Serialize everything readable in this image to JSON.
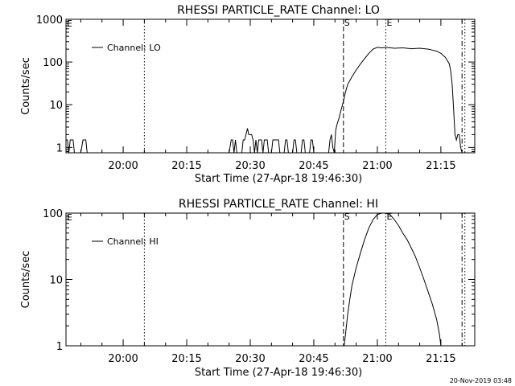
{
  "footer_timestamp": "20-Nov-2019 03:48",
  "chart_data": [
    {
      "type": "line",
      "title": "RHESSI PARTICLE_RATE Channel: LO",
      "xlabel": "Start Time (27-Apr-18 19:46:30)",
      "ylabel": "Counts/sec",
      "yscale": "log",
      "ylim": [
        0.75,
        1000
      ],
      "xlim": [
        "19:46:30",
        "21:23:00"
      ],
      "x_ticks": [
        "20:00",
        "20:15",
        "20:30",
        "20:45",
        "21:00",
        "21:15"
      ],
      "y_ticks": [
        "1",
        "10",
        "100",
        "1000"
      ],
      "legend": "top-left",
      "series": [
        {
          "name": "Channel: LO",
          "x": [
            "19:46:30",
            "19:46:50",
            "19:47:10",
            "19:47:30",
            "19:47:50",
            "19:48:10",
            "19:48:30",
            "19:50:00",
            "19:50:30",
            "19:50:50",
            "19:51:10",
            "19:51:30",
            "19:52:00",
            "20:25:00",
            "20:25:30",
            "20:25:50",
            "20:26:10",
            "20:26:30",
            "20:26:50",
            "20:28:00",
            "20:28:20",
            "20:28:40",
            "20:29:00",
            "20:29:20",
            "20:29:40",
            "20:30:20",
            "20:30:40",
            "20:31:00",
            "20:31:20",
            "20:31:40",
            "20:32:00",
            "20:32:40",
            "20:33:00",
            "20:33:20",
            "20:33:40",
            "20:34:00",
            "20:34:20",
            "20:35:00",
            "20:35:20",
            "20:36:00",
            "20:36:20",
            "20:36:40",
            "20:37:00",
            "20:38:00",
            "20:38:20",
            "20:38:40",
            "20:39:00",
            "20:40:00",
            "20:40:20",
            "20:40:40",
            "20:41:00",
            "20:42:00",
            "20:42:20",
            "20:42:40",
            "20:43:00",
            "20:44:00",
            "20:44:20",
            "20:44:40",
            "20:45:00",
            "20:48:30",
            "20:48:50",
            "20:49:10",
            "20:49:30",
            "20:49:50",
            "20:50:10",
            "20:50:30",
            "20:51:00",
            "20:51:30",
            "20:52:00",
            "20:52:30",
            "20:53:00",
            "20:54:00",
            "20:55:00",
            "20:56:00",
            "20:57:00",
            "20:58:00",
            "20:59:00",
            "21:00:00",
            "21:01:00",
            "21:02:00",
            "21:04:00",
            "21:06:00",
            "21:08:00",
            "21:10:00",
            "21:12:00",
            "21:13:00",
            "21:14:00",
            "21:15:00",
            "21:16:00",
            "21:16:30",
            "21:17:00",
            "21:17:20",
            "21:17:40",
            "21:18:00",
            "21:18:20",
            "21:18:40",
            "21:19:00",
            "21:19:20",
            "21:19:40",
            "21:20:00"
          ],
          "y": [
            1.5,
            1.5,
            0.75,
            1.5,
            1.5,
            1.5,
            0.75,
            0.75,
            1.5,
            1.5,
            1.5,
            0.75,
            0.75,
            0.75,
            1.5,
            1.5,
            0.75,
            1.5,
            0.75,
            0.75,
            1.5,
            1.5,
            2,
            2.8,
            2,
            2,
            1.5,
            0.75,
            1.5,
            0.75,
            1.5,
            1.5,
            0.75,
            1.5,
            1.5,
            1.5,
            0.75,
            0.75,
            1.5,
            1.5,
            1.5,
            1.5,
            0.75,
            0.75,
            1.5,
            1.5,
            0.75,
            0.75,
            1.5,
            1.5,
            0.75,
            0.75,
            1.5,
            1.5,
            0.75,
            0.75,
            1.5,
            1.5,
            0.75,
            0.75,
            1.5,
            2,
            1,
            0.75,
            2.5,
            3.5,
            5,
            8,
            12,
            20,
            30,
            45,
            65,
            90,
            120,
            160,
            200,
            220,
            215,
            220,
            210,
            215,
            205,
            210,
            200,
            190,
            180,
            160,
            130,
            110,
            90,
            60,
            30,
            8,
            2,
            1.5,
            2,
            2,
            1,
            0.75
          ]
        }
      ],
      "reference_lines": [
        {
          "time": "20:05:00",
          "style": "dotted",
          "label": ""
        },
        {
          "time": "20:52:00",
          "style": "dashed",
          "label": "S"
        },
        {
          "time": "21:02:00",
          "style": "dotted",
          "label": "E"
        },
        {
          "time": "21:20:00",
          "style": "dashdot",
          "label": ""
        },
        {
          "time": "21:20:40",
          "style": "dotted",
          "label": ""
        }
      ],
      "corner_marker": "E"
    },
    {
      "type": "line",
      "title": "RHESSI PARTICLE_RATE Channel: HI",
      "xlabel": "Start Time (27-Apr-18 19:46:30)",
      "ylabel": "Counts/sec",
      "yscale": "log",
      "ylim": [
        1,
        100
      ],
      "xlim": [
        "19:46:30",
        "21:23:00"
      ],
      "x_ticks": [
        "20:00",
        "20:15",
        "20:30",
        "20:45",
        "21:00",
        "21:15"
      ],
      "y_ticks": [
        "1",
        "10",
        "100"
      ],
      "legend": "top-left",
      "series": [
        {
          "name": "Channel: HI",
          "x": [
            "20:52:10",
            "20:52:30",
            "20:53:00",
            "20:53:30",
            "20:54:00",
            "20:55:00",
            "20:56:00",
            "20:57:00",
            "20:58:00",
            "20:59:00",
            "21:00:00",
            "21:01:00",
            "21:02:00",
            "21:03:00",
            "21:04:00",
            "21:05:00",
            "21:06:00",
            "21:07:00",
            "21:08:00",
            "21:09:00",
            "21:10:00",
            "21:11:00",
            "21:12:00",
            "21:13:00",
            "21:14:00",
            "21:14:40",
            "21:15:00"
          ],
          "y": [
            1,
            1.5,
            3,
            5,
            8,
            15,
            25,
            40,
            60,
            80,
            95,
            100,
            100,
            95,
            80,
            65,
            50,
            40,
            30,
            22,
            15,
            10,
            6.5,
            4.2,
            2.5,
            1.5,
            1
          ]
        }
      ],
      "reference_lines": [
        {
          "time": "20:05:00",
          "style": "dotted",
          "label": ""
        },
        {
          "time": "20:52:00",
          "style": "dashed",
          "label": "S"
        },
        {
          "time": "21:02:00",
          "style": "dotted",
          "label": "E"
        },
        {
          "time": "21:20:00",
          "style": "dashdot",
          "label": ""
        },
        {
          "time": "21:20:40",
          "style": "dotted",
          "label": ""
        }
      ],
      "corner_marker": "E"
    }
  ]
}
